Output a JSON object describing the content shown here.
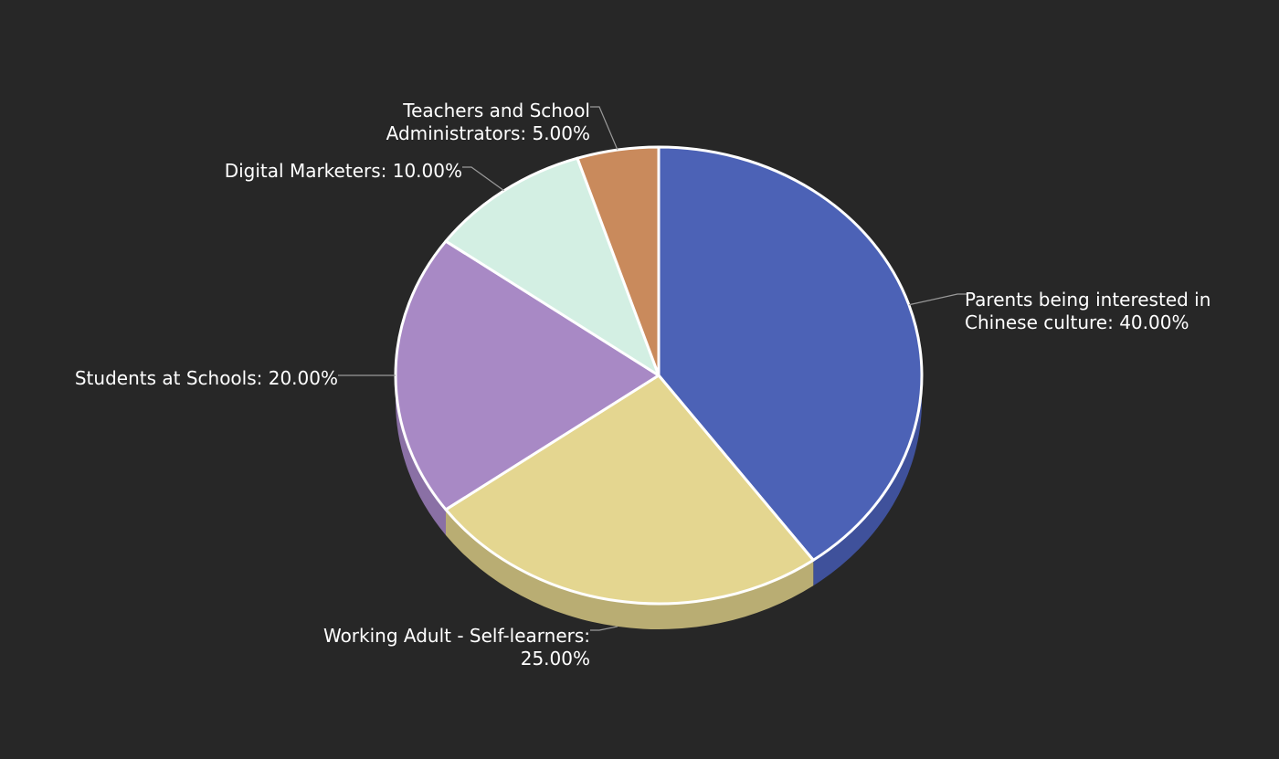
{
  "chart_data": {
    "type": "pie",
    "variant": "3d",
    "title": "",
    "start_angle_deg": 0,
    "direction": "clockwise",
    "slices": [
      {
        "label": "Parents being interested in Chinese culture: 40.00%",
        "lines": [
          "Parents being interested in",
          "Chinese culture: 40.00%"
        ],
        "category": "Parents being interested in Chinese culture",
        "value": 40.0,
        "color": "#4c62b6",
        "side_color": "#3f519b"
      },
      {
        "label": "Working Adult - Self-learners: 25.00%",
        "lines": [
          "Working Adult - Self-learners:",
          "25.00%"
        ],
        "category": "Working Adult - Self-learners",
        "value": 25.0,
        "color": "#e4d690",
        "side_color": "#b9ad73"
      },
      {
        "label": "Students at Schools: 20.00%",
        "lines": [
          "Students at Schools: 20.00%"
        ],
        "category": "Students at Schools",
        "value": 20.0,
        "color": "#a889c5",
        "side_color": "#8a70a5"
      },
      {
        "label": "Digital Marketers: 10.00%",
        "lines": [
          "Digital Marketers: 10.00%"
        ],
        "category": "Digital Marketers",
        "value": 10.0,
        "color": "#d3efe3",
        "side_color": "#aec7bc"
      },
      {
        "label": "Teachers and School Administrators: 5.00%",
        "lines": [
          "Teachers and School",
          "Administrators: 5.00%"
        ],
        "category": "Teachers and School Administrators",
        "value": 5.0,
        "color": "#c98a5c",
        "side_color": "#a5704a"
      }
    ],
    "slice_border_color": "#ffffff",
    "background": "#272727",
    "label_color": "#ffffff",
    "leader_line_color": "#9a9a9a",
    "legend": "none"
  }
}
